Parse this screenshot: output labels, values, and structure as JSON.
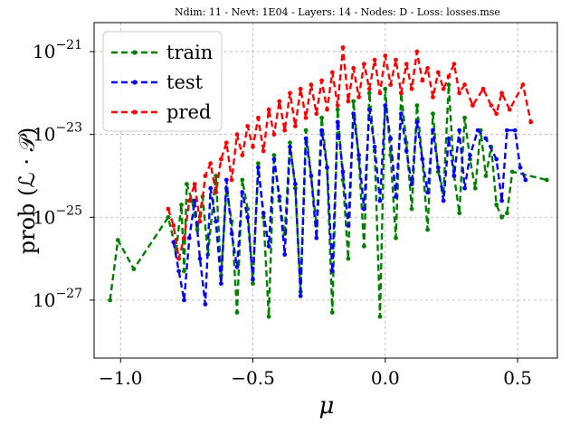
{
  "chart_data": {
    "type": "line",
    "title": "Ndim: 11 - Nevt: 1E04 - Layers: 14 - Nodes: D - Loss: losses.mse",
    "xlabel": "μ",
    "ylabel": "prob (ℒ · 𝒫)",
    "xlim": [
      -1.1,
      0.65
    ],
    "ylim_log10": [
      -28.4,
      -20.3
    ],
    "y_scale": "log",
    "grid": true,
    "legend_position": "top-left",
    "x_ticks": [
      {
        "value": -1.0,
        "label": "−1.0"
      },
      {
        "value": -0.5,
        "label": "−0.5"
      },
      {
        "value": 0.0,
        "label": "0.0"
      },
      {
        "value": 0.5,
        "label": "0.5"
      }
    ],
    "y_ticks": [
      {
        "exp": -21,
        "base": "10",
        "sup": "−21"
      },
      {
        "exp": -23,
        "base": "10",
        "sup": "−23"
      },
      {
        "exp": -25,
        "base": "10",
        "sup": "−25"
      },
      {
        "exp": -27,
        "base": "10",
        "sup": "−27"
      }
    ],
    "series": [
      {
        "name": "train",
        "color": "#008000",
        "points": [
          [
            -1.04,
            -27.0
          ],
          [
            -1.01,
            -25.55
          ],
          [
            -0.95,
            -26.25
          ],
          [
            -0.82,
            -25.0
          ],
          [
            -0.79,
            -25.8
          ],
          [
            -0.77,
            -24.7
          ],
          [
            -0.76,
            -26.3
          ],
          [
            -0.75,
            -24.2
          ],
          [
            -0.73,
            -24.6
          ],
          [
            -0.71,
            -25.3
          ],
          [
            -0.69,
            -24.5
          ],
          [
            -0.67,
            -25.9
          ],
          [
            -0.64,
            -24.0
          ],
          [
            -0.62,
            -26.4
          ],
          [
            -0.6,
            -24.3
          ],
          [
            -0.58,
            -25.1
          ],
          [
            -0.56,
            -27.3
          ],
          [
            -0.54,
            -24.1
          ],
          [
            -0.52,
            -24.8
          ],
          [
            -0.5,
            -26.6
          ],
          [
            -0.48,
            -23.7
          ],
          [
            -0.46,
            -25.0
          ],
          [
            -0.44,
            -27.4
          ],
          [
            -0.42,
            -23.5
          ],
          [
            -0.4,
            -24.6
          ],
          [
            -0.38,
            -25.4
          ],
          [
            -0.36,
            -23.2
          ],
          [
            -0.34,
            -24.3
          ],
          [
            -0.32,
            -26.8
          ],
          [
            -0.3,
            -22.9
          ],
          [
            -0.28,
            -24.0
          ],
          [
            -0.26,
            -25.2
          ],
          [
            -0.24,
            -22.6
          ],
          [
            -0.22,
            -23.8
          ],
          [
            -0.2,
            -27.3
          ],
          [
            -0.18,
            -22.4
          ],
          [
            -0.16,
            -24.1
          ],
          [
            -0.14,
            -26.0
          ],
          [
            -0.12,
            -22.2
          ],
          [
            -0.1,
            -23.6
          ],
          [
            -0.08,
            -25.7
          ],
          [
            -0.06,
            -22.0
          ],
          [
            -0.04,
            -23.4
          ],
          [
            -0.02,
            -27.4
          ],
          [
            0.0,
            -21.9
          ],
          [
            0.02,
            -23.5
          ],
          [
            0.04,
            -25.5
          ],
          [
            0.06,
            -22.0
          ],
          [
            0.08,
            -23.2
          ],
          [
            0.1,
            -24.8
          ],
          [
            0.12,
            -22.3
          ],
          [
            0.14,
            -23.6
          ],
          [
            0.16,
            -25.3
          ],
          [
            0.18,
            -22.5
          ],
          [
            0.2,
            -23.9
          ],
          [
            0.22,
            -24.4
          ],
          [
            0.24,
            -21.8
          ],
          [
            0.26,
            -24.0
          ],
          [
            0.28,
            -24.9
          ],
          [
            0.3,
            -22.6
          ],
          [
            0.32,
            -23.6
          ],
          [
            0.34,
            -24.3
          ],
          [
            0.36,
            -22.9
          ],
          [
            0.38,
            -24.0
          ],
          [
            0.4,
            -23.3
          ],
          [
            0.42,
            -24.7
          ],
          [
            0.44,
            -25.0
          ],
          [
            0.46,
            -24.9
          ],
          [
            0.48,
            -23.9
          ],
          [
            0.61,
            -24.1
          ]
        ]
      },
      {
        "name": "test",
        "color": "#0000ff",
        "points": [
          [
            -0.8,
            -25.6
          ],
          [
            -0.78,
            -26.3
          ],
          [
            -0.76,
            -27.0
          ],
          [
            -0.74,
            -25.5
          ],
          [
            -0.72,
            -24.6
          ],
          [
            -0.7,
            -26.0
          ],
          [
            -0.68,
            -27.1
          ],
          [
            -0.66,
            -24.3
          ],
          [
            -0.64,
            -25.1
          ],
          [
            -0.62,
            -26.6
          ],
          [
            -0.6,
            -24.1
          ],
          [
            -0.58,
            -25.4
          ],
          [
            -0.56,
            -26.2
          ],
          [
            -0.54,
            -24.4
          ],
          [
            -0.52,
            -25.0
          ],
          [
            -0.5,
            -26.5
          ],
          [
            -0.48,
            -23.8
          ],
          [
            -0.46,
            -24.9
          ],
          [
            -0.44,
            -25.7
          ],
          [
            -0.42,
            -23.6
          ],
          [
            -0.4,
            -24.5
          ],
          [
            -0.38,
            -25.9
          ],
          [
            -0.36,
            -23.3
          ],
          [
            -0.34,
            -24.2
          ],
          [
            -0.32,
            -26.9
          ],
          [
            -0.3,
            -23.1
          ],
          [
            -0.28,
            -24.0
          ],
          [
            -0.26,
            -25.5
          ],
          [
            -0.24,
            -22.9
          ],
          [
            -0.22,
            -23.8
          ],
          [
            -0.2,
            -26.3
          ],
          [
            -0.18,
            -22.7
          ],
          [
            -0.16,
            -23.9
          ],
          [
            -0.14,
            -25.2
          ],
          [
            -0.12,
            -22.5
          ],
          [
            -0.1,
            -23.5
          ],
          [
            -0.08,
            -24.8
          ],
          [
            -0.06,
            -22.4
          ],
          [
            -0.04,
            -23.3
          ],
          [
            -0.02,
            -24.6
          ],
          [
            0.0,
            -22.3
          ],
          [
            0.02,
            -23.1
          ],
          [
            0.04,
            -24.5
          ],
          [
            0.06,
            -22.5
          ],
          [
            0.08,
            -23.4
          ],
          [
            0.1,
            -24.2
          ],
          [
            0.12,
            -22.7
          ],
          [
            0.14,
            -23.6
          ],
          [
            0.16,
            -24.4
          ],
          [
            0.18,
            -22.9
          ],
          [
            0.2,
            -23.8
          ],
          [
            0.22,
            -24.6
          ],
          [
            0.24,
            -23.1
          ],
          [
            0.26,
            -24.0
          ],
          [
            0.28,
            -22.9
          ],
          [
            0.3,
            -24.3
          ],
          [
            0.32,
            -23.5
          ],
          [
            0.35,
            -22.9
          ],
          [
            0.38,
            -23.1
          ],
          [
            0.42,
            -23.6
          ],
          [
            0.44,
            -24.6
          ],
          [
            0.46,
            -22.9
          ],
          [
            0.49,
            -22.9
          ],
          [
            0.51,
            -23.8
          ],
          [
            0.53,
            -24.1
          ]
        ]
      },
      {
        "name": "pred",
        "color": "#ff0000",
        "points": [
          [
            -0.82,
            -24.8
          ],
          [
            -0.8,
            -25.2
          ],
          [
            -0.78,
            -26.0
          ],
          [
            -0.76,
            -25.5
          ],
          [
            -0.74,
            -24.6
          ],
          [
            -0.72,
            -24.2
          ],
          [
            -0.7,
            -25.1
          ],
          [
            -0.68,
            -24.0
          ],
          [
            -0.66,
            -23.7
          ],
          [
            -0.64,
            -24.4
          ],
          [
            -0.62,
            -23.6
          ],
          [
            -0.6,
            -23.2
          ],
          [
            -0.58,
            -24.1
          ],
          [
            -0.56,
            -23.0
          ],
          [
            -0.54,
            -23.5
          ],
          [
            -0.52,
            -22.8
          ],
          [
            -0.5,
            -23.3
          ],
          [
            -0.48,
            -22.6
          ],
          [
            -0.46,
            -23.4
          ],
          [
            -0.44,
            -22.4
          ],
          [
            -0.42,
            -23.0
          ],
          [
            -0.4,
            -22.2
          ],
          [
            -0.38,
            -22.9
          ],
          [
            -0.36,
            -22.0
          ],
          [
            -0.34,
            -22.8
          ],
          [
            -0.32,
            -21.9
          ],
          [
            -0.3,
            -22.6
          ],
          [
            -0.28,
            -21.8
          ],
          [
            -0.26,
            -22.5
          ],
          [
            -0.24,
            -21.7
          ],
          [
            -0.22,
            -22.4
          ],
          [
            -0.2,
            -21.5
          ],
          [
            -0.18,
            -22.3
          ],
          [
            -0.16,
            -20.9
          ],
          [
            -0.14,
            -22.2
          ],
          [
            -0.12,
            -21.4
          ],
          [
            -0.1,
            -22.1
          ],
          [
            -0.08,
            -21.3
          ],
          [
            -0.06,
            -21.9
          ],
          [
            -0.04,
            -21.2
          ],
          [
            -0.02,
            -22.0
          ],
          [
            0.0,
            -21.1
          ],
          [
            0.02,
            -21.8
          ],
          [
            0.04,
            -21.2
          ],
          [
            0.06,
            -22.0
          ],
          [
            0.08,
            -21.3
          ],
          [
            0.1,
            -21.9
          ],
          [
            0.12,
            -21.0
          ],
          [
            0.14,
            -21.7
          ],
          [
            0.16,
            -21.4
          ],
          [
            0.18,
            -22.1
          ],
          [
            0.2,
            -21.5
          ],
          [
            0.22,
            -21.9
          ],
          [
            0.24,
            -21.6
          ],
          [
            0.26,
            -21.3
          ],
          [
            0.28,
            -22.0
          ],
          [
            0.3,
            -21.8
          ],
          [
            0.33,
            -22.3
          ],
          [
            0.37,
            -21.9
          ],
          [
            0.4,
            -22.3
          ],
          [
            0.42,
            -22.5
          ],
          [
            0.44,
            -22.0
          ],
          [
            0.47,
            -22.4
          ],
          [
            0.52,
            -21.8
          ],
          [
            0.55,
            -22.7
          ]
        ]
      }
    ]
  }
}
